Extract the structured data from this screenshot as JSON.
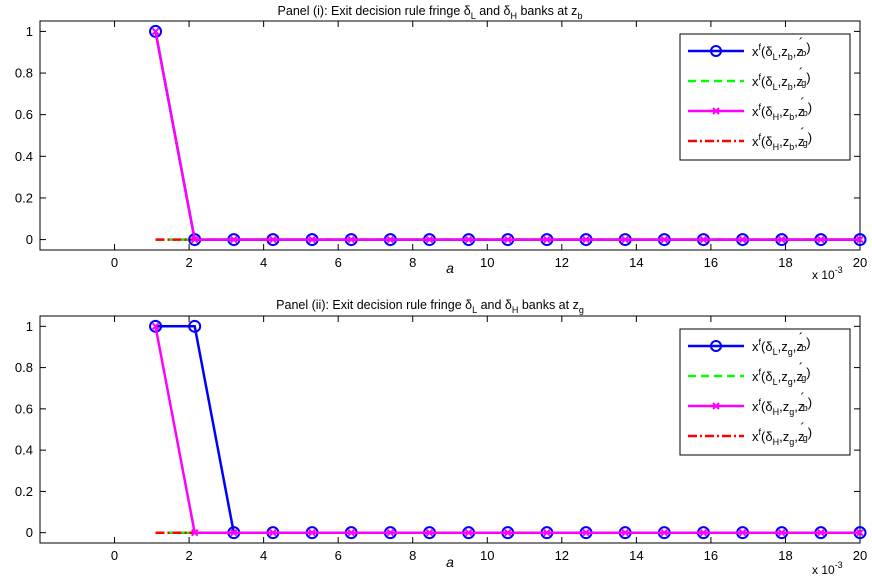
{
  "chart_data": [
    {
      "type": "line",
      "title": {
        "prefix": "Panel (i): Exit decision rule fringe δ",
        "s1": "L",
        "mid": " and δ",
        "s2": "H",
        "post": " banks at z",
        "s3": "b"
      },
      "xlabel": "a",
      "ylabel": "",
      "xlim": [
        -0.002,
        0.02
      ],
      "ylim": [
        -0.05,
        1.05
      ],
      "xticks": [
        0,
        2,
        4,
        6,
        8,
        10,
        12,
        14,
        16,
        18,
        20
      ],
      "xtick_scale": "x 10",
      "xtick_scale_exp": "-3",
      "yticks": [
        "0",
        "0.2",
        "0.4",
        "0.6",
        "0.8",
        "1"
      ],
      "ytick_values": [
        0,
        0.2,
        0.4,
        0.6,
        0.8,
        1
      ],
      "grid": false,
      "legend_position": "top-right",
      "x": [
        0.0011,
        0.00215,
        0.0032,
        0.00425,
        0.0053,
        0.00635,
        0.0074,
        0.00845,
        0.0095,
        0.01055,
        0.0116,
        0.01265,
        0.0137,
        0.01475,
        0.0158,
        0.01685,
        0.0179,
        0.01895,
        0.02
      ],
      "series": [
        {
          "legend": {
            "d": "L",
            "z": "b",
            "zp": "b"
          },
          "color": "#0000ff",
          "dash": "",
          "marker": "circle",
          "values": [
            1,
            0,
            0,
            0,
            0,
            0,
            0,
            0,
            0,
            0,
            0,
            0,
            0,
            0,
            0,
            0,
            0,
            0,
            0
          ]
        },
        {
          "legend": {
            "d": "L",
            "z": "b",
            "zp": "g"
          },
          "color": "#00ff00",
          "dash": "8,5",
          "marker": "none",
          "values": [
            0,
            0,
            0,
            0,
            0,
            0,
            0,
            0,
            0,
            0,
            0,
            0,
            0,
            0,
            0,
            0,
            0,
            0,
            0
          ]
        },
        {
          "legend": {
            "d": "H",
            "z": "b",
            "zp": "b"
          },
          "color": "#ff00ff",
          "dash": "",
          "marker": "x",
          "values": [
            1,
            0,
            0,
            0,
            0,
            0,
            0,
            0,
            0,
            0,
            0,
            0,
            0,
            0,
            0,
            0,
            0,
            0,
            0
          ]
        },
        {
          "legend": {
            "d": "H",
            "z": "b",
            "zp": "g"
          },
          "color": "#ff0000",
          "dash": "9,3,2,3",
          "marker": "none",
          "values": [
            0,
            0,
            0,
            0,
            0,
            0,
            0,
            0,
            0,
            0,
            0,
            0,
            0,
            0,
            0,
            0,
            0,
            0,
            0
          ]
        }
      ]
    },
    {
      "type": "line",
      "title": {
        "prefix": "Panel (ii): Exit decision rule fringe δ",
        "s1": "L",
        "mid": " and δ",
        "s2": "H",
        "post": " banks at z",
        "s3": "g"
      },
      "xlabel": "a",
      "ylabel": "",
      "xlim": [
        -0.002,
        0.02
      ],
      "ylim": [
        -0.05,
        1.05
      ],
      "xticks": [
        0,
        2,
        4,
        6,
        8,
        10,
        12,
        14,
        16,
        18,
        20
      ],
      "xtick_scale": "x 10",
      "xtick_scale_exp": "-3",
      "yticks": [
        "0",
        "0.2",
        "0.4",
        "0.6",
        "0.8",
        "1"
      ],
      "ytick_values": [
        0,
        0.2,
        0.4,
        0.6,
        0.8,
        1
      ],
      "grid": false,
      "legend_position": "top-right",
      "x": [
        0.0011,
        0.00215,
        0.0032,
        0.00425,
        0.0053,
        0.00635,
        0.0074,
        0.00845,
        0.0095,
        0.01055,
        0.0116,
        0.01265,
        0.0137,
        0.01475,
        0.0158,
        0.01685,
        0.0179,
        0.01895,
        0.02
      ],
      "series": [
        {
          "legend": {
            "d": "L",
            "z": "g",
            "zp": "b"
          },
          "color": "#0000ff",
          "dash": "",
          "marker": "circle",
          "values": [
            1,
            1,
            0,
            0,
            0,
            0,
            0,
            0,
            0,
            0,
            0,
            0,
            0,
            0,
            0,
            0,
            0,
            0,
            0
          ]
        },
        {
          "legend": {
            "d": "L",
            "z": "g",
            "zp": "g"
          },
          "color": "#00ff00",
          "dash": "8,5",
          "marker": "none",
          "values": [
            0,
            0,
            0,
            0,
            0,
            0,
            0,
            0,
            0,
            0,
            0,
            0,
            0,
            0,
            0,
            0,
            0,
            0,
            0
          ]
        },
        {
          "legend": {
            "d": "H",
            "z": "g",
            "zp": "b"
          },
          "color": "#ff00ff",
          "dash": "",
          "marker": "x",
          "values": [
            1,
            0,
            0,
            0,
            0,
            0,
            0,
            0,
            0,
            0,
            0,
            0,
            0,
            0,
            0,
            0,
            0,
            0,
            0
          ]
        },
        {
          "legend": {
            "d": "H",
            "z": "g",
            "zp": "g"
          },
          "color": "#ff0000",
          "dash": "9,3,2,3",
          "marker": "none",
          "values": [
            0,
            0,
            0,
            0,
            0,
            0,
            0,
            0,
            0,
            0,
            0,
            0,
            0,
            0,
            0,
            0,
            0,
            0,
            0
          ]
        }
      ]
    }
  ]
}
